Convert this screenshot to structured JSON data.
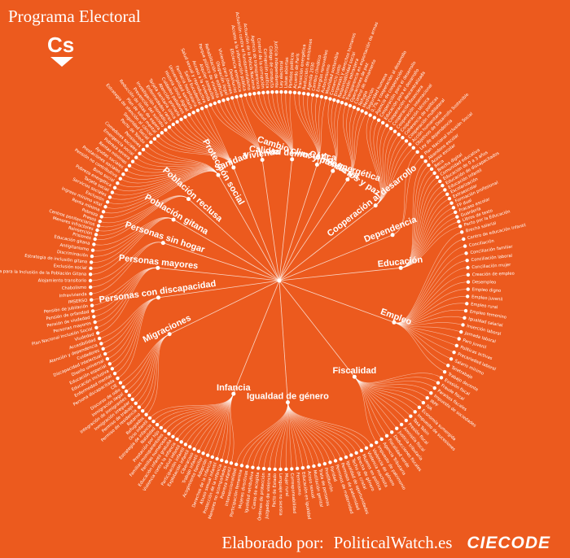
{
  "header": {
    "title": "Programa Electoral",
    "logo_text": "Cs"
  },
  "footer": {
    "made_by": "Elaborado por:",
    "org1": "PoliticalWatch.es",
    "org2": "CIECODE"
  },
  "colors": {
    "background": "#ec5a1e",
    "foreground": "#ffffff"
  },
  "categories": [
    {
      "name": "Sanidad",
      "leaves": [
        "Estrategia de atención al cáncer",
        "Plan de salud mental",
        "Reducción de listas de espera",
        "Prevención del suicidio",
        "Investigación biomédica",
        "Enfermedades raras",
        "Tarjeta sanitaria única",
        "Atención primaria",
        "Cuidados paliativos",
        "Historia clínica digital",
        "Universalidad sanitaria",
        "Farmacia hospitalaria",
        "Salud bucodental",
        "Salud sexual y reproductiva"
      ]
    },
    {
      "name": "Vivienda",
      "leaves": [
        "Acceso a la vivienda",
        "Alquiler asequible",
        "Parque público de vivienda",
        "Rehabilitación de edificios",
        "Okupación ilegal",
        "Vivienda para jóvenes",
        "Desahucios",
        "Eficiencia energética"
      ]
    },
    {
      "name": "Calidad democrática",
      "leaves": [
        "Acceso a la información pública",
        "Actuación contra el fundamentalismo",
        "Actuación de la Policía Nacional",
        "Agencia de transparencia",
        "Control de la corrupción",
        "Corrupción política",
        "Código de conducta",
        "Justicia independiente",
        "Ley electoral",
        "Listas abiertas",
        "Partidos políticos"
      ]
    },
    {
      "name": "Cambio clim. y pol. energética",
      "leaves": [
        "Acuerdo de París",
        "Transición energética",
        "Reducción de emisiones",
        "Agenda 2030",
        "Cambio climático",
        "Energías renovables",
        "Autoconsumo",
        "Movilidad sostenible"
      ]
    },
    {
      "name": "Comercio int.",
      "leaves": [
        "Comercio justo",
        "Empresas y derechos humanos",
        "Responsabilidad social",
        "Inversión extranjera"
      ]
    },
    {
      "name": "Conflictos y paz",
      "leaves": [
        "Transparencia en exportación de armas",
        "Operaciones de paz",
        "Control de armamento",
        "Refugio",
        "Mediación",
        "Seguridad humana"
      ]
    },
    {
      "name": "Cooperación al desarrollo",
      "leaves": [
        "0,7% y cooperación al desarrollo",
        "Agencia de cooperación",
        "Cooperación para el desarrollo",
        "Educación para el desarrollo",
        "Cooperación descentralizada",
        "Cooperación financiera",
        "Cooperación internacional",
        "Cooperación técnica",
        "Coherencia de políticas",
        "Cooperación multilateral",
        "Acción humanitaria",
        "Objetivos de Desarrollo Sostenible"
      ]
    },
    {
      "name": "Dependencia",
      "leaves": [
        "Ley de dependencia",
        "Plan Nacional Inclusión Social"
      ]
    },
    {
      "name": "Educación",
      "leaves": [
        "Abandono escolar",
        "Acoso escolar",
        "Beca",
        "Brecha digital",
        "Comunidad educativa",
        "Educación de 0 a 3 años",
        "Educación de discapacitados",
        "Educación infantil",
        "Escolarización",
        "Extraescolar",
        "Formación profesional",
        "FP dual",
        "Fracaso escolar",
        "Guardería",
        "Libros de texto",
        "Pacto por la Educación"
      ]
    },
    {
      "name": "Empleo",
      "leaves": [
        "Brecha salarial",
        "Centro de educación infantil",
        "Conciliación",
        "Conciliación familiar",
        "Conciliación laboral",
        "Conciliación mujer",
        "Creación de empleo",
        "Desempleo",
        "Empleo digno",
        "Empleo juvenil",
        "Empleo rural",
        "Empleo femenino",
        "Igualdad salarial",
        "Inserción laboral",
        "Jornada laboral",
        "Paro juvenil",
        "Políticas activas",
        "Precariedad laboral",
        "Salario mínimo",
        "Teletrabajo",
        "Trabajo decente"
      ]
    },
    {
      "name": "Fiscalidad",
      "leaves": [
        "Evasión fiscal",
        "Fraude fiscal",
        "Paraísos fiscales",
        "Impuesto de sociedades",
        "IRPF",
        "IVA",
        "Economía sumergida",
        "Impuesto de sucesiones",
        "Tasa Tobin",
        "Presión fiscal",
        "Amnistía fiscal",
        "Justicia tributaria",
        "Deducciones fiscales",
        "Fiscalidad verde",
        "Agencia Tributaria",
        "Impuesto de patrimonio"
      ]
    },
    {
      "name": "Igualdad de género",
      "leaves": [
        "Violencia de género",
        "Violencia machista",
        "Mujeres en política",
        "Brecha de género",
        "Techo de cristal",
        "Igualdad de oportunidades",
        "Permisos de paternidad",
        "Permisos de maternidad",
        "Paridad",
        "Prostitución",
        "Trata de personas",
        "Mutilación genital",
        "Acoso sexual",
        "Educación en igualdad",
        "Feminismo",
        "Corresponsabilidad",
        "Mujer rural",
        "Lenguaje no sexista",
        "Pacto de Estado",
        "Juzgados de violencia",
        "Órdenes de protección",
        "Casas de acogida",
        "Igualdad retributiva",
        "Mujeres directivas",
        "Participación femenina",
        "Interseccionalidad"
      ]
    },
    {
      "name": "Infancia",
      "leaves": [
        "Pobreza infantil",
        "Menores no acompañados",
        "Protección de la infancia",
        "Abuso sexual infantil",
        "Derechos de la infancia",
        "Adopción",
        "Acogimiento familiar",
        "Trabajo infantil",
        "Ciberacoso",
        "Explotación infantil",
        "Participación infantil",
        "Salud infantil",
        "Violencia contra la infancia",
        "Educación infantil gratuita",
        "Familias numerosas",
        "Familias monoparentales",
        "Prestación por hijo",
        "Natalidad",
        "Estrategia de infancia",
        "Ocio infantil"
      ]
    },
    {
      "name": "Migraciones",
      "leaves": [
        "Refugiados",
        "Retorno",
        "Permiso de residencia",
        "Permiso de trabajo",
        "Inmigración irregular",
        "Integración de inmigrantes",
        "Inmigración ilegal",
        "Discurso de odio",
        "CIE"
      ]
    },
    {
      "name": "Personas con discapacidad",
      "leaves": [
        "Persona discapacitada",
        "Enfermedad mental",
        "Educación inclusiva",
        "Educación especial",
        "Diseño universal",
        "Discapacidad intelectual",
        "Cuidadores",
        "Atención y dependencia",
        "Accesibilidad"
      ]
    },
    {
      "name": "Personas mayores",
      "leaves": [
        "Viudedad",
        "Plan Nacional Inclusión Social",
        "Personas mayores",
        "Pensión de viudedad",
        "Pensión de orfandad",
        "Pensión de jubilación",
        "IMSERSO"
      ]
    },
    {
      "name": "Personas sin hogar",
      "leaves": [
        "Infravivienda",
        "Chabolismo",
        "Alojamiento transitorio"
      ]
    },
    {
      "name": "Población gitana",
      "leaves": [
        "Estrategia para la Inclusión de la Población Gitana",
        "Exclusión social",
        "Estrategia de inclusión gitana",
        "Discriminación",
        "Antigitanismo",
        "Educación gitana"
      ]
    },
    {
      "name": "Población reclusa",
      "leaves": [
        "Prisiones",
        "Reinserción",
        "Menores infractores",
        "Centros penitenciarios",
        "Presos"
      ]
    },
    {
      "name": "Protección social",
      "leaves": [
        "Pobreza",
        "Renta mínima",
        "Ingreso mínimo vital",
        "Exclusión",
        "Servicios sociales",
        "Tarjeta social",
        "Pobreza energética",
        "Bono social",
        "Pensión no contributiva",
        "Prestaciones sociales",
        "Ayudas sociales",
        "Rentas mínimas",
        "Pobreza severa",
        "Emergencia social",
        "Comedores sociales",
        "Pensiones",
        "Pacto de Toledo",
        "Seguridad Social"
      ]
    }
  ]
}
